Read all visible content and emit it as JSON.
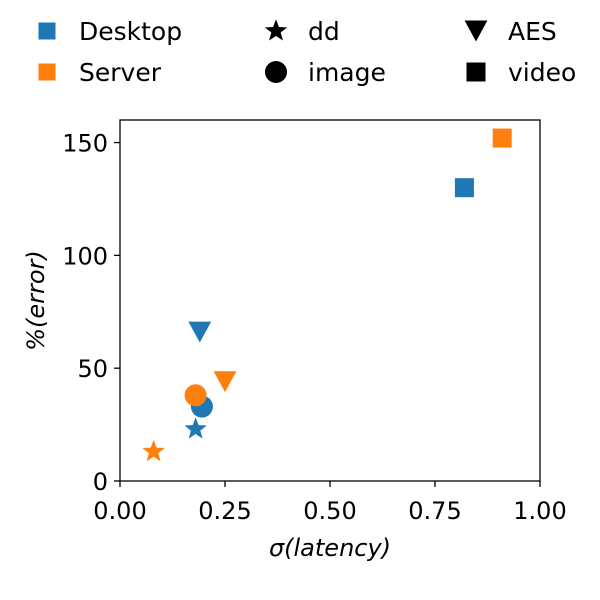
{
  "chart_data": {
    "type": "scatter",
    "xlabel": "σ(latency)",
    "ylabel": "%(error)",
    "xlim": [
      0.0,
      1.0
    ],
    "ylim": [
      0,
      160
    ],
    "x_ticks": [
      "0.00",
      "0.25",
      "0.50",
      "0.75",
      "1.00"
    ],
    "y_ticks": [
      "0",
      "50",
      "100",
      "150"
    ],
    "grid": false,
    "legend_placement": "top",
    "legend": {
      "color_groups": [
        {
          "label": "Desktop",
          "color": "#1f77b4"
        },
        {
          "label": "Server",
          "color": "#ff7f0e"
        }
      ],
      "marker_groups": [
        {
          "label": "dd",
          "marker": "star"
        },
        {
          "label": "image",
          "marker": "circle"
        },
        {
          "label": "AES",
          "marker": "triangle-down"
        },
        {
          "label": "video",
          "marker": "square"
        }
      ]
    },
    "points": [
      {
        "platform": "Desktop",
        "workload": "dd",
        "x": 0.18,
        "y": 23
      },
      {
        "platform": "Desktop",
        "workload": "image",
        "x": 0.195,
        "y": 33
      },
      {
        "platform": "Desktop",
        "workload": "AES",
        "x": 0.19,
        "y": 66
      },
      {
        "platform": "Desktop",
        "workload": "video",
        "x": 0.82,
        "y": 130
      },
      {
        "platform": "Server",
        "workload": "dd",
        "x": 0.08,
        "y": 13
      },
      {
        "platform": "Server",
        "workload": "image",
        "x": 0.18,
        "y": 38
      },
      {
        "platform": "Server",
        "workload": "AES",
        "x": 0.25,
        "y": 44
      },
      {
        "platform": "Server",
        "workload": "video",
        "x": 0.91,
        "y": 152
      }
    ]
  }
}
